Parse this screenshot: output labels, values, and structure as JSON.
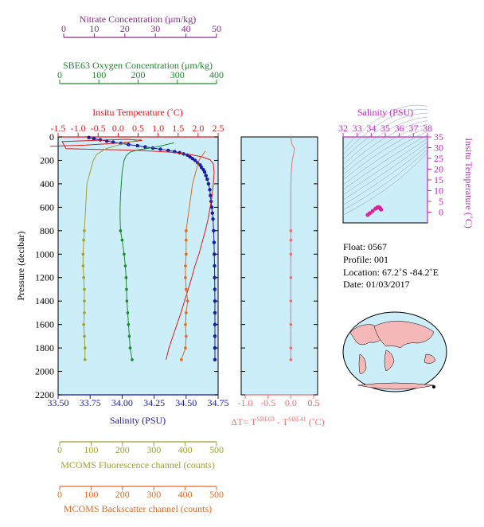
{
  "colors": {
    "salinity": "#1a1aa8",
    "temperature": "#e01a1a",
    "oxygen": "#1a8a2a",
    "nitrate": "#8a2a8a",
    "fluorescence": "#a0a030",
    "backscatter": "#e06a20",
    "delta_t": "#f07070",
    "ts_axis": "#cc22cc",
    "panel_bg": "#cceef8"
  },
  "axes": {
    "nitrate": {
      "label": "Nitrate Concentration (μm/kg)",
      "ticks": [
        "0",
        "10",
        "20",
        "30",
        "40",
        "50"
      ]
    },
    "oxygen": {
      "label": "SBE63 Oxygen Concentration (μm/kg)",
      "ticks": [
        "0",
        "100",
        "200",
        "300",
        "400"
      ]
    },
    "temperature": {
      "label": "Insitu Temperature (˚C)",
      "ticks": [
        "-1.5",
        "-1.0",
        "-0.5",
        "0.0",
        "0.5",
        "1.0",
        "1.5",
        "2.0",
        "2.5"
      ]
    },
    "pressure": {
      "label": "Pressure (decibar)",
      "ticks": [
        "0",
        "200",
        "400",
        "600",
        "800",
        "1000",
        "1200",
        "1400",
        "1600",
        "1800",
        "2000",
        "2200"
      ]
    },
    "salinity": {
      "label": "Salinity (PSU)",
      "ticks": [
        "33.50",
        "33.75",
        "34.00",
        "34.25",
        "34.50",
        "34.75"
      ]
    },
    "delta_t": {
      "label_prefix": "ΔT= T",
      "sup1": "SBE63",
      "label_mid": " - T",
      "sup2": "SBE41",
      "label_suffix": " (˚C)",
      "ticks": [
        "-1.0",
        "-0.5",
        "0.0",
        "0.5"
      ]
    },
    "fluorescence": {
      "label": "MCOMS Fluorescence channel (counts)",
      "ticks": [
        "0",
        "100",
        "200",
        "300",
        "400",
        "500"
      ]
    },
    "backscatter": {
      "label": "MCOMS Backscatter channel (counts)",
      "ticks": [
        "0",
        "100",
        "200",
        "300",
        "400",
        "500"
      ]
    },
    "ts_salinity": {
      "label": "Salinity (PSU)",
      "ticks": [
        "32",
        "33",
        "34",
        "35",
        "36",
        "37",
        "38"
      ]
    },
    "ts_temperature": {
      "label": "Insitu Temperature (˚C)",
      "ticks": [
        "0",
        "5",
        "10",
        "15",
        "20",
        "25",
        "30",
        "35"
      ]
    }
  },
  "info": {
    "float": "Float:  0567",
    "profile": "Profile:  001",
    "location": "Location:  67.2˚S  -84.2˚E",
    "date": "Date:  01/03/2017"
  },
  "chart_data": [
    {
      "type": "line",
      "pressure_range": [
        0,
        2200
      ],
      "series": [
        {
          "name": "Salinity (PSU)",
          "xlim": [
            33.5,
            34.75
          ],
          "points": [
            [
              33.74,
              5
            ],
            [
              33.78,
              15
            ],
            [
              33.83,
              25
            ],
            [
              33.88,
              35
            ],
            [
              33.93,
              45
            ],
            [
              33.99,
              55
            ],
            [
              34.05,
              65
            ],
            [
              34.12,
              75
            ],
            [
              34.18,
              85
            ],
            [
              34.24,
              95
            ],
            [
              34.3,
              105
            ],
            [
              34.36,
              115
            ],
            [
              34.41,
              125
            ],
            [
              34.45,
              135
            ],
            [
              34.48,
              145
            ],
            [
              34.51,
              155
            ],
            [
              34.53,
              170
            ],
            [
              34.55,
              185
            ],
            [
              34.57,
              200
            ],
            [
              34.59,
              220
            ],
            [
              34.61,
              240
            ],
            [
              34.62,
              260
            ],
            [
              34.635,
              280
            ],
            [
              34.645,
              300
            ],
            [
              34.655,
              330
            ],
            [
              34.665,
              360
            ],
            [
              34.675,
              400
            ],
            [
              34.685,
              450
            ],
            [
              34.69,
              500
            ],
            [
              34.695,
              550
            ],
            [
              34.7,
              600
            ],
            [
              34.705,
              650
            ],
            [
              34.71,
              700
            ],
            [
              34.715,
              800
            ],
            [
              34.718,
              900
            ],
            [
              34.72,
              1000
            ],
            [
              34.722,
              1100
            ],
            [
              34.723,
              1200
            ],
            [
              34.724,
              1300
            ],
            [
              34.725,
              1400
            ],
            [
              34.725,
              1500
            ],
            [
              34.725,
              1600
            ],
            [
              34.725,
              1700
            ],
            [
              34.725,
              1800
            ],
            [
              34.725,
              1900
            ]
          ]
        },
        {
          "name": "Insitu Temperature (˚C)",
          "xlim": [
            -1.5,
            2.5
          ],
          "points": [
            [
              -1.7,
              80
            ],
            [
              -0.8,
              70
            ],
            [
              0.1,
              50
            ],
            [
              0.6,
              30
            ],
            [
              0.2,
              20
            ],
            [
              -1.4,
              40
            ],
            [
              -1.3,
              100
            ],
            [
              0.5,
              115
            ],
            [
              1.3,
              130
            ],
            [
              1.8,
              150
            ],
            [
              2.1,
              170
            ],
            [
              2.3,
              195
            ],
            [
              2.38,
              230
            ],
            [
              2.4,
              300
            ],
            [
              2.38,
              400
            ],
            [
              2.35,
              500
            ],
            [
              2.3,
              600
            ],
            [
              2.25,
              700
            ],
            [
              2.18,
              800
            ],
            [
              2.1,
              900
            ],
            [
              2.02,
              1000
            ],
            [
              1.92,
              1100
            ],
            [
              1.84,
              1200
            ],
            [
              1.75,
              1300
            ],
            [
              1.66,
              1400
            ],
            [
              1.57,
              1500
            ],
            [
              1.47,
              1600
            ],
            [
              1.37,
              1700
            ],
            [
              1.27,
              1800
            ],
            [
              1.2,
              1900
            ]
          ]
        },
        {
          "name": "SBE63 Oxygen Concentration (μm/kg)",
          "xlim": [
            0,
            400
          ],
          "points": [
            [
              290,
              50
            ],
            [
              240,
              90
            ],
            [
              200,
              110
            ],
            [
              180,
              130
            ],
            [
              170,
              160
            ],
            [
              165,
              200
            ],
            [
              160,
              300
            ],
            [
              158,
              400
            ],
            [
              156,
              500
            ],
            [
              155,
              600
            ],
            [
              155,
              700
            ],
            [
              156,
              800
            ],
            [
              160,
              880
            ],
            [
              165,
              1000
            ],
            [
              168,
              1100
            ],
            [
              170,
              1200
            ],
            [
              171,
              1300
            ],
            [
              172,
              1400
            ],
            [
              174,
              1500
            ],
            [
              176,
              1600
            ],
            [
              178,
              1700
            ],
            [
              180,
              1800
            ],
            [
              185,
              1900
            ]
          ]
        },
        {
          "name": "MCOMS Fluorescence channel (counts)",
          "xlim": [
            0,
            500
          ],
          "points": [
            [
              260,
              20
            ],
            [
              200,
              60
            ],
            [
              150,
              100
            ],
            [
              120,
              150
            ],
            [
              110,
              200
            ],
            [
              100,
              300
            ],
            [
              90,
              400
            ],
            [
              88,
              500
            ],
            [
              86,
              600
            ],
            [
              84,
              700
            ],
            [
              82,
              800
            ],
            [
              80,
              880
            ],
            [
              78,
              1000
            ],
            [
              78,
              1100
            ],
            [
              80,
              1200
            ],
            [
              82,
              1300
            ],
            [
              82,
              1400
            ],
            [
              82,
              1500
            ],
            [
              80,
              1600
            ],
            [
              82,
              1700
            ],
            [
              84,
              1800
            ],
            [
              84,
              1900
            ]
          ]
        },
        {
          "name": "MCOMS Backscatter channel (counts)",
          "xlim": [
            0,
            500
          ],
          "points": [
            [
              460,
              120
            ],
            [
              440,
              200
            ],
            [
              430,
              300
            ],
            [
              420,
              400
            ],
            [
              415,
              500
            ],
            [
              410,
              600
            ],
            [
              405,
              700
            ],
            [
              400,
              800
            ],
            [
              400,
              880
            ],
            [
              400,
              1000
            ],
            [
              398,
              1100
            ],
            [
              398,
              1200
            ],
            [
              400,
              1300
            ],
            [
              405,
              1400
            ],
            [
              400,
              1500
            ],
            [
              398,
              1600
            ],
            [
              400,
              1700
            ],
            [
              398,
              1800
            ],
            [
              385,
              1900
            ]
          ]
        },
        {
          "name": "ΔT (˚C)",
          "xlim": [
            -1.0,
            0.5
          ],
          "points": [
            [
              0.0,
              0
            ],
            [
              0.02,
              60
            ],
            [
              0.08,
              100
            ],
            [
              0.06,
              150
            ],
            [
              0.03,
              200
            ],
            [
              0.01,
              300
            ],
            [
              0.0,
              400
            ],
            [
              0.0,
              600
            ],
            [
              0.0,
              800
            ],
            [
              0.0,
              880
            ],
            [
              0.0,
              1000
            ],
            [
              0.0,
              1200
            ],
            [
              0.0,
              1400
            ],
            [
              0.0,
              1600
            ],
            [
              0.0,
              1800
            ],
            [
              0.0,
              1900
            ]
          ]
        }
      ]
    },
    {
      "type": "scatter",
      "xlim": [
        32,
        38
      ],
      "ylim": [
        -5,
        35
      ],
      "points": [
        [
          33.75,
          -1.3
        ],
        [
          33.9,
          -0.5
        ],
        [
          34.1,
          0.5
        ],
        [
          34.3,
          1.6
        ],
        [
          34.45,
          2.2
        ],
        [
          34.55,
          2.3
        ],
        [
          34.6,
          2.1
        ],
        [
          34.65,
          1.7
        ],
        [
          34.7,
          1.2
        ]
      ]
    }
  ]
}
